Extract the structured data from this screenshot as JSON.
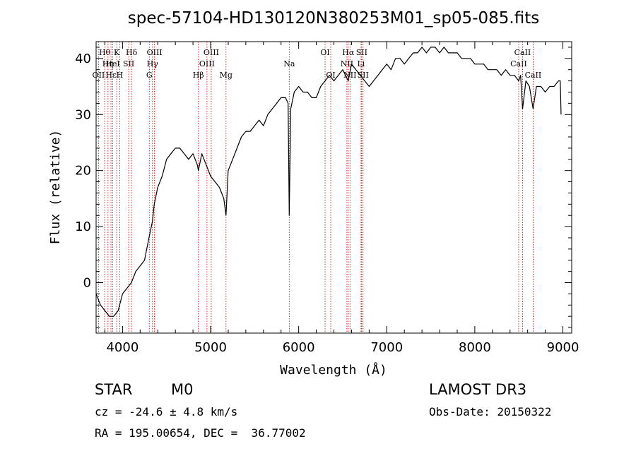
{
  "chart_data": {
    "type": "line",
    "title": "spec-57104-HD130120N380253M01_sp05-085.fits",
    "xlabel": "Wavelength (Å)",
    "ylabel": "Flux (relative)",
    "xlim": [
      3700,
      9100
    ],
    "ylim": [
      -9,
      43
    ],
    "xticks": [
      4000,
      5000,
      6000,
      7000,
      8000,
      9000
    ],
    "yticks": [
      0,
      10,
      20,
      30,
      40
    ],
    "series": [
      {
        "x": [
          3700,
          3750,
          3800,
          3850,
          3900,
          3950,
          4000,
          4050,
          4100,
          4150,
          4200,
          4250,
          4300,
          4340,
          4360,
          4400,
          4450,
          4500,
          4550,
          4600,
          4650,
          4700,
          4750,
          4800,
          4850,
          4861,
          4900,
          4950,
          5000,
          5050,
          5100,
          5150,
          5175,
          5200,
          5250,
          5300,
          5350,
          5400,
          5450,
          5500,
          5550,
          5600,
          5650,
          5700,
          5750,
          5800,
          5850,
          5880,
          5893,
          5910,
          5950,
          6000,
          6050,
          6100,
          6150,
          6200,
          6250,
          6300,
          6350,
          6400,
          6450,
          6500,
          6563,
          6600,
          6650,
          6700,
          6750,
          6800,
          6850,
          6900,
          6950,
          7000,
          7050,
          7100,
          7150,
          7200,
          7250,
          7300,
          7350,
          7400,
          7450,
          7500,
          7550,
          7600,
          7650,
          7700,
          7750,
          7800,
          7850,
          7900,
          7950,
          8000,
          8050,
          8100,
          8150,
          8200,
          8250,
          8300,
          8350,
          8400,
          8450,
          8498,
          8520,
          8542,
          8580,
          8620,
          8662,
          8700,
          8750,
          8800,
          8850,
          8900,
          8950,
          8970,
          8980
        ],
        "y": [
          -2,
          -4,
          -5,
          -6,
          -6,
          -5,
          -2,
          -1,
          0,
          2,
          3,
          4,
          8,
          11,
          14,
          17,
          19,
          22,
          23,
          24,
          24,
          23,
          22,
          23,
          21,
          20,
          23,
          21,
          19,
          18,
          17,
          15,
          12,
          20,
          22,
          24,
          26,
          27,
          27,
          28,
          29,
          28,
          30,
          31,
          32,
          33,
          33,
          32,
          12,
          31,
          34,
          35,
          34,
          34,
          33,
          33,
          35,
          36,
          37,
          36,
          37,
          38,
          36,
          39,
          38,
          37,
          36,
          35,
          36,
          37,
          38,
          39,
          38,
          40,
          40,
          39,
          40,
          41,
          41,
          42,
          41,
          42,
          42,
          41,
          42,
          41,
          41,
          41,
          40,
          40,
          40,
          39,
          39,
          39,
          38,
          38,
          38,
          37,
          38,
          37,
          37,
          36,
          37,
          31,
          36,
          35,
          31,
          35,
          35,
          34,
          35,
          35,
          36,
          36,
          30
        ]
      }
    ],
    "line_markers": [
      {
        "wl": 3727,
        "label": "OII",
        "row": 3
      },
      {
        "wl": 3797,
        "label": "Hθ",
        "row": 1
      },
      {
        "wl": 3835,
        "label": "Hη",
        "row": 2
      },
      {
        "wl": 3869,
        "label": "Hε",
        "row": 3
      },
      {
        "wl": 3889,
        "label": "HeI",
        "row": 2
      },
      {
        "wl": 3934,
        "label": "K",
        "row": 1
      },
      {
        "wl": 3968,
        "label": "H",
        "row": 3
      },
      {
        "wl": 4070,
        "label": "SII",
        "row": 2
      },
      {
        "wl": 4102,
        "label": "Hδ",
        "row": 1
      },
      {
        "wl": 4304,
        "label": "G",
        "row": 3
      },
      {
        "wl": 4340,
        "label": "Hγ",
        "row": 2
      },
      {
        "wl": 4363,
        "label": "OIII",
        "row": 1
      },
      {
        "wl": 4861,
        "label": "Hβ",
        "row": 3
      },
      {
        "wl": 4959,
        "label": "OIII",
        "row": 2
      },
      {
        "wl": 5007,
        "label": "OIII",
        "row": 1
      },
      {
        "wl": 5175,
        "label": "Mg",
        "row": 3
      },
      {
        "wl": 5893,
        "label": "Na",
        "row": 2
      },
      {
        "wl": 6300,
        "label": "OI",
        "row": 1
      },
      {
        "wl": 6364,
        "label": "OI",
        "row": 3
      },
      {
        "wl": 6548,
        "label": "NII",
        "row": 2
      },
      {
        "wl": 6563,
        "label": "Hα",
        "row": 1
      },
      {
        "wl": 6583,
        "label": "NII",
        "row": 3
      },
      {
        "wl": 6708,
        "label": "Li",
        "row": 2
      },
      {
        "wl": 6716,
        "label": "SII",
        "row": 1
      },
      {
        "wl": 6731,
        "label": "SII",
        "row": 3
      },
      {
        "wl": 8498,
        "label": "CaII",
        "row": 2
      },
      {
        "wl": 8542,
        "label": "CaII",
        "row": 1
      },
      {
        "wl": 8662,
        "label": "CaII",
        "row": 3
      }
    ],
    "grid": false,
    "legend": "none"
  },
  "info": {
    "object_class": "STAR",
    "subclass": "M0",
    "survey": "LAMOST DR3",
    "redshift": "cz = -24.6 ± 4.8 km/s",
    "obs_date": "Obs-Date: 20150322",
    "coords": "RA = 195.00654, DEC =  36.77002"
  },
  "colors": {
    "spectrum": "#000000",
    "marker_lines": "#cc0000",
    "axis": "#000000",
    "background": "#ffffff"
  }
}
